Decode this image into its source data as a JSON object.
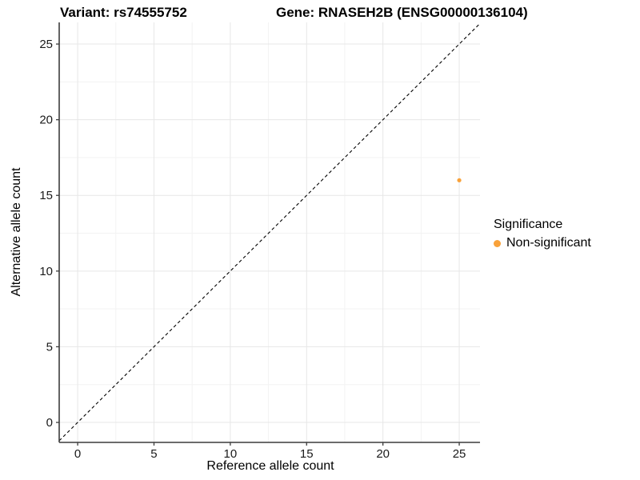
{
  "chart_data": {
    "type": "scatter",
    "title_left": "Variant: rs74555752",
    "title_right": "Gene: RNASEH2B (ENSG00000136104)",
    "xlabel": "Reference allele count",
    "ylabel": "Alternative allele count",
    "x_ticks": [
      0,
      5,
      10,
      15,
      20,
      25
    ],
    "y_ticks": [
      0,
      5,
      10,
      15,
      20,
      25
    ],
    "xlim": [
      -1.21,
      26.36
    ],
    "ylim": [
      -1.32,
      26.43
    ],
    "grid": {
      "major_every": 5,
      "minor_every": 2.5,
      "visible": true
    },
    "identity_line": {
      "slope": 1,
      "intercept": 0,
      "style": "dashed",
      "color": "#000000"
    },
    "series": [
      {
        "name": "Non-significant",
        "color": "#F9A23A",
        "points": [
          {
            "x": 25,
            "y": 16
          }
        ]
      }
    ],
    "legend": {
      "title": "Significance",
      "position": "right",
      "entries": [
        {
          "label": "Non-significant",
          "color": "#F9A23A",
          "marker": "circle"
        }
      ]
    },
    "colors": {
      "point_orange": "#F9A23A",
      "axis_line": "#3c3c3c",
      "major_grid": "#e7e7e7",
      "minor_grid": "#f3f3f3",
      "text": "#000000"
    }
  }
}
